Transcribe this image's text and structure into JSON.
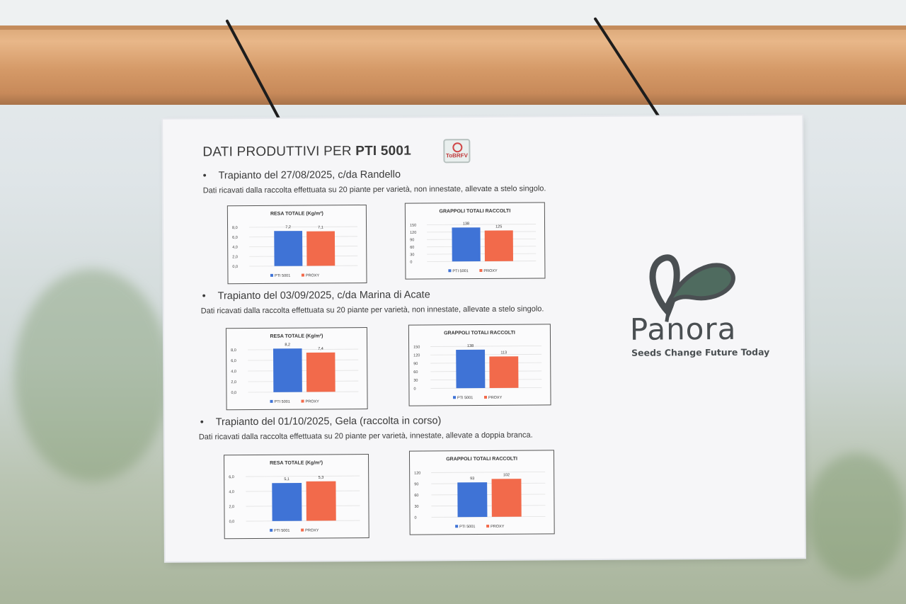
{
  "poster": {
    "title_prefix": "DATI PRODUTTIVI PER ",
    "title_bold": "PTI 5001",
    "badge": "ToBRFV",
    "bullet": "•",
    "brand": "Panora",
    "tagline": "Seeds Change Future Today"
  },
  "colors": {
    "pti": "#3f73d6",
    "proxy": "#f26a4b"
  },
  "sections": [
    {
      "heading": "Trapianto del 27/08/2025, c/da Randello",
      "note": "Dati ricavati dalla raccolta effettuata su 20 piante per varietà, non innestate, allevate a stelo singolo."
    },
    {
      "heading": "Trapianto del 03/09/2025, c/da Marina di Acate",
      "note": "Dati ricavati dalla raccolta effettuata su 20 piante per varietà, non innestate, allevate a stelo singolo."
    },
    {
      "heading": "Trapianto del 01/10/2025, Gela (raccolta in corso)",
      "note": "Dati ricavati dalla raccolta effettuata su 20 piante per varietà, innestate, allevate a doppia branca."
    }
  ],
  "chart_data": [
    {
      "type": "bar",
      "title": "RESA TOTALE (Kg/m²)",
      "categories": [
        "PTI 5001",
        "PROXY"
      ],
      "values": [
        7.2,
        7.1
      ],
      "value_labels": [
        "7,2",
        "7,1"
      ],
      "ylim": [
        0,
        8
      ],
      "yticks": [
        "0,0",
        "2,0",
        "4,0",
        "6,0",
        "8,0"
      ],
      "legend": [
        "PTI 5001",
        "PROXY"
      ],
      "legend_position": "bottom",
      "grid": true
    },
    {
      "type": "bar",
      "title": "GRAPPOLI TOTALI RACCOLTI",
      "categories": [
        "PTI 5001",
        "PROXY"
      ],
      "values": [
        138,
        125
      ],
      "value_labels": [
        "138",
        "125"
      ],
      "ylim": [
        0,
        150
      ],
      "yticks": [
        "0",
        "30",
        "60",
        "90",
        "120",
        "150"
      ],
      "legend": [
        "PTI 5001",
        "PROXY"
      ],
      "legend_position": "bottom",
      "grid": true
    },
    {
      "type": "bar",
      "title": "RESA TOTALE (Kg/m²)",
      "categories": [
        "PTI 5001",
        "PROXY"
      ],
      "values": [
        8.2,
        7.4
      ],
      "value_labels": [
        "8,2",
        "7,4"
      ],
      "ylim": [
        0,
        8
      ],
      "yticks": [
        "0,0",
        "2,0",
        "4,0",
        "6,0",
        "8,0"
      ],
      "legend": [
        "PTI 5001",
        "PROXY"
      ],
      "legend_position": "bottom",
      "grid": true
    },
    {
      "type": "bar",
      "title": "GRAPPOLI TOTALI RACCOLTI",
      "categories": [
        "PTI 5001",
        "PROXY"
      ],
      "values": [
        138,
        113
      ],
      "value_labels": [
        "138",
        "113"
      ],
      "ylim": [
        0,
        150
      ],
      "yticks": [
        "0",
        "30",
        "60",
        "90",
        "120",
        "150"
      ],
      "legend": [
        "PTI 5001",
        "PROXY"
      ],
      "legend_position": "bottom",
      "grid": true
    },
    {
      "type": "bar",
      "title": "RESA TOTALE (Kg/m²)",
      "categories": [
        "PTI 5001",
        "PROXY"
      ],
      "values": [
        5.1,
        5.3
      ],
      "value_labels": [
        "5,1",
        "5,3"
      ],
      "ylim": [
        0,
        6
      ],
      "yticks": [
        "0,0",
        "2,0",
        "4,0",
        "6,0"
      ],
      "legend": [
        "PTI 5001",
        "PROXY"
      ],
      "legend_position": "bottom",
      "grid": true
    },
    {
      "type": "bar",
      "title": "GRAPPOLI TOTALI RACCOLTI",
      "categories": [
        "PTI 5001",
        "PROXY"
      ],
      "values": [
        93,
        102
      ],
      "value_labels": [
        "93",
        "102"
      ],
      "ylim": [
        0,
        120
      ],
      "yticks": [
        "0",
        "30",
        "60",
        "90",
        "120"
      ],
      "legend": [
        "PTI 5001",
        "PROXY"
      ],
      "legend_position": "bottom",
      "grid": true
    }
  ]
}
